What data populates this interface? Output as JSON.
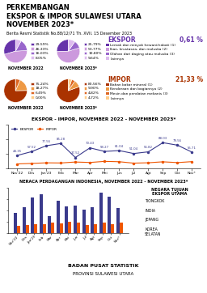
{
  "title": "PERKEMBANGAN\nEKSPOR & IMPOR SULAWESI UTARA\nNOVEMBER 2023*",
  "subtitle": "Berita Resmi Statistik No.88/12/71 Th. XVII. 15 Desember 2023",
  "annotations": [
    [
      "NEGARA TUJUAN\nEKSPOR UTAMA",
      "TIONGKOK",
      "INDIA",
      "JEPANG",
      "KOREA\nSELATAN"
    ],
    [
      "BADAN PUSAT STATISTIK",
      "PROVINSI SULAWESI UTARA"
    ]
  ],
  "chart_data": [
    {
      "type": "pie",
      "title": "EKSPOR",
      "annotations": [
        "0,61 %"
      ],
      "categories": [
        "Lemak dan minyak hewani/nabati (1)",
        "Ikan, krustasea, dan moluska (2)",
        "Olahan dari daging atau moluska (3)",
        "Lainnya"
      ],
      "colors": [
        "#6633aa",
        "#cc99dd",
        "#9966cc",
        "#ddbbee"
      ],
      "series": [
        {
          "name": "NOVEMBER 2022",
          "values": [
            29.59,
            46.33,
            16.03,
            8.05
          ],
          "value_labels": [
            "29,59%",
            "46,33%",
            "16,03%",
            "8,05%"
          ]
        },
        {
          "name": "NOVEMBER 2023*",
          "values": [
            25.79,
            53.77,
            10.8,
            9.64
          ],
          "value_labels": [
            "25,79%",
            "53,77%",
            "10,80%",
            "9,64%"
          ]
        }
      ]
    },
    {
      "type": "pie",
      "title": "IMPOR",
      "annotations": [
        "21,33 %"
      ],
      "categories": [
        "Bahan bakar mineral (1)",
        "Kendaraan dan bagiannya (2)",
        "Mesin dan peralatan mekanis (3)",
        "Lainnya"
      ],
      "colors": [
        "#aa3300",
        "#ee9944",
        "#dd6622",
        "#ffcc88"
      ],
      "series": [
        {
          "name": "NOVEMBER 2022",
          "values": [
            75.24,
            18.27,
            6.49,
            0.0
          ],
          "value_labels": [
            "75,24%",
            "18,27%",
            "6,49%",
            "0,00%"
          ]
        },
        {
          "name": "NOVEMBER 2023*",
          "values": [
            80.56,
            9.9,
            4.82,
            4.72
          ],
          "value_labels": [
            "80,56%",
            "9,90%",
            "4,82%",
            "4,72%"
          ]
        }
      ]
    },
    {
      "type": "line",
      "title": "EKSPOR - IMPOR, NOVEMBER 2022 - NOVEMBER 2023*",
      "categories": [
        "Nov'22",
        "Des",
        "Jan'23",
        "Feb",
        "Mar",
        "Apr",
        "Mei",
        "Jun",
        "Jul",
        "Agt",
        "Sep",
        "Okt",
        "Nov*"
      ],
      "series": [
        {
          "name": "EKSPOR",
          "color": "#3a3a8c",
          "marker": "o",
          "data_labels": true,
          "values": [
            44.35,
            57.52,
            77.56,
            85.28,
            37.52,
            70.43,
            58.27,
            61.04,
            51.04,
            56.82,
            88.03,
            79.56,
            55.71
          ]
        },
        {
          "name": "IMPOR",
          "color": "#ee5500",
          "marker": "o",
          "data_labels": false,
          "values": [
            15.5,
            17.2,
            19.3,
            18.8,
            22.1,
            20.5,
            24.3,
            23.1,
            18.2,
            19.5,
            22.8,
            20.1,
            23.4
          ]
        }
      ],
      "ylim": [
        0,
        150
      ],
      "yticks": [
        0,
        50,
        100,
        150
      ],
      "tick_labels": "x",
      "legend": "upper left"
    },
    {
      "type": "bar",
      "title": "NERACA PERDAGANGAN INDONESIA, NOVEMBER 2022 - NOVEMBER 2023*",
      "categories": [
        "Nov'22",
        "Des",
        "Jan'23",
        "Feb",
        "Mar",
        "Apr",
        "Mei",
        "Jun",
        "Jul",
        "Agt",
        "Sep",
        "Okt",
        "Nov*"
      ],
      "series": [
        {
          "color": "#3a3a8c",
          "values": [
            44.35,
            57.52,
            77.56,
            85.28,
            37.52,
            70.43,
            58.27,
            61.04,
            51.04,
            56.82,
            88.03,
            79.56,
            55.71
          ]
        },
        {
          "color": "#ee5500",
          "values": [
            15.5,
            17.2,
            19.3,
            18.8,
            22.1,
            20.5,
            24.3,
            23.1,
            18.2,
            19.5,
            22.8,
            20.1,
            23.4
          ]
        }
      ],
      "ylim": [
        0,
        100
      ],
      "yticks": [
        0,
        25,
        50,
        75,
        100
      ],
      "tick_labels": "x"
    }
  ]
}
